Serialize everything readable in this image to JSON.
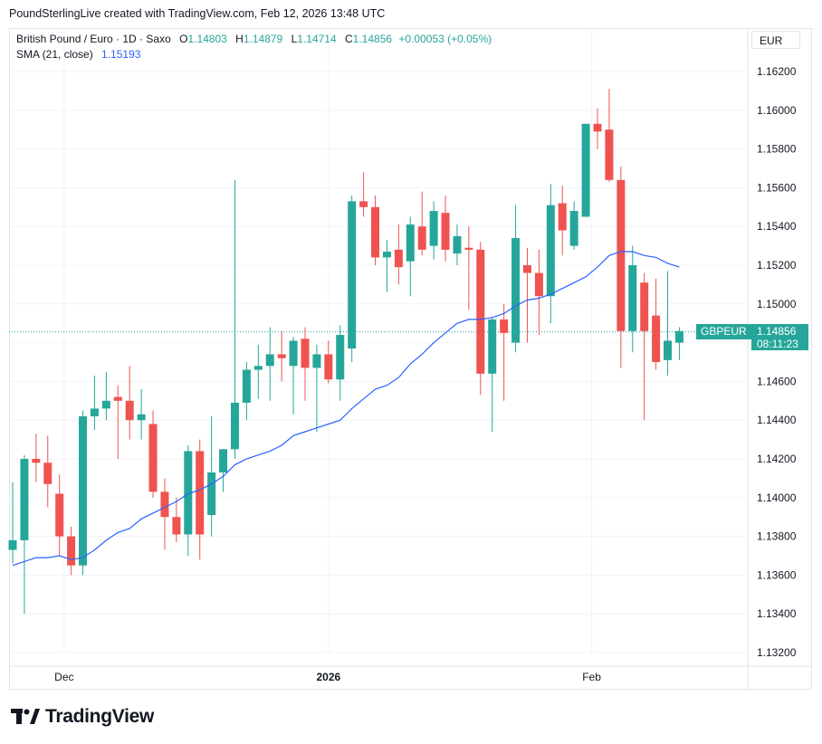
{
  "header": {
    "caption": "PoundSterlingLive created with TradingView.com, Feb 12, 2026 13:48 UTC"
  },
  "legend": {
    "symbol": "British Pound / Euro · 1D · Saxo",
    "open_label": "O",
    "open_value": "1.14803",
    "high_label": "H",
    "high_value": "1.14879",
    "low_label": "L",
    "low_value": "1.14714",
    "close_label": "C",
    "close_value": "1.14856",
    "change": "+0.00053 (+0.05%)",
    "sma_label": "SMA (21, close)",
    "sma_value": "1.15193"
  },
  "currency_button": "EUR",
  "price_tag": {
    "symbol": "GBPEUR",
    "price": "1.14856",
    "countdown": "08:11:23"
  },
  "footer": {
    "brand": "TradingView"
  },
  "colors": {
    "up": "#26a69a",
    "down": "#ef5350",
    "sma": "#2962ff",
    "grid": "#f0f3fa"
  },
  "chart_data": {
    "type": "candlestick",
    "y_axis": {
      "ticks": [
        "1.16200",
        "1.16000",
        "1.15800",
        "1.15600",
        "1.15400",
        "1.15200",
        "1.15000",
        "1.14800",
        "1.14600",
        "1.14400",
        "1.14200",
        "1.14000",
        "1.13800",
        "1.13600",
        "1.13400",
        "1.13200"
      ],
      "range": [
        1.1314,
        1.1633
      ],
      "position": "right"
    },
    "x_axis": {
      "labels": [
        {
          "text": "Dec",
          "index": 4.4
        },
        {
          "text": "2026",
          "index": 27
        },
        {
          "text": "Feb",
          "index": 49.5
        }
      ]
    },
    "series": [
      {
        "name": "British Pound / Euro",
        "candles": [
          {
            "o": 1.1373,
            "h": 1.1408,
            "l": 1.1366,
            "c": 1.1378
          },
          {
            "o": 1.1378,
            "h": 1.1422,
            "l": 1.134,
            "c": 1.142
          },
          {
            "o": 1.142,
            "h": 1.1433,
            "l": 1.1408,
            "c": 1.1418
          },
          {
            "o": 1.1418,
            "h": 1.1432,
            "l": 1.1395,
            "c": 1.1407
          },
          {
            "o": 1.1402,
            "h": 1.1412,
            "l": 1.137,
            "c": 1.138
          },
          {
            "o": 1.138,
            "h": 1.1385,
            "l": 1.136,
            "c": 1.1365
          },
          {
            "o": 1.1365,
            "h": 1.1445,
            "l": 1.136,
            "c": 1.1442
          },
          {
            "o": 1.1442,
            "h": 1.1463,
            "l": 1.1435,
            "c": 1.1446
          },
          {
            "o": 1.1446,
            "h": 1.1465,
            "l": 1.144,
            "c": 1.145
          },
          {
            "o": 1.1452,
            "h": 1.1458,
            "l": 1.142,
            "c": 1.145
          },
          {
            "o": 1.145,
            "h": 1.1468,
            "l": 1.143,
            "c": 1.144
          },
          {
            "o": 1.144,
            "h": 1.1456,
            "l": 1.143,
            "c": 1.1443
          },
          {
            "o": 1.1438,
            "h": 1.1445,
            "l": 1.14,
            "c": 1.1403
          },
          {
            "o": 1.1403,
            "h": 1.141,
            "l": 1.1373,
            "c": 1.139
          },
          {
            "o": 1.139,
            "h": 1.14,
            "l": 1.1377,
            "c": 1.1381
          },
          {
            "o": 1.1381,
            "h": 1.1427,
            "l": 1.137,
            "c": 1.1424
          },
          {
            "o": 1.1424,
            "h": 1.143,
            "l": 1.1368,
            "c": 1.1381
          },
          {
            "o": 1.1391,
            "h": 1.1442,
            "l": 1.138,
            "c": 1.1413
          },
          {
            "o": 1.1413,
            "h": 1.1425,
            "l": 1.1403,
            "c": 1.1425
          },
          {
            "o": 1.1425,
            "h": 1.1564,
            "l": 1.142,
            "c": 1.1449
          },
          {
            "o": 1.1449,
            "h": 1.147,
            "l": 1.144,
            "c": 1.1466
          },
          {
            "o": 1.1466,
            "h": 1.1479,
            "l": 1.1451,
            "c": 1.1468
          },
          {
            "o": 1.1468,
            "h": 1.1488,
            "l": 1.145,
            "c": 1.1474
          },
          {
            "o": 1.1474,
            "h": 1.1486,
            "l": 1.146,
            "c": 1.1472
          },
          {
            "o": 1.1468,
            "h": 1.1483,
            "l": 1.1443,
            "c": 1.1481
          },
          {
            "o": 1.1482,
            "h": 1.1488,
            "l": 1.145,
            "c": 1.1467
          },
          {
            "o": 1.1467,
            "h": 1.1479,
            "l": 1.1434,
            "c": 1.1474
          },
          {
            "o": 1.1474,
            "h": 1.1481,
            "l": 1.1459,
            "c": 1.1461
          },
          {
            "o": 1.1461,
            "h": 1.1489,
            "l": 1.145,
            "c": 1.1484
          },
          {
            "o": 1.1477,
            "h": 1.1556,
            "l": 1.147,
            "c": 1.1553
          },
          {
            "o": 1.1553,
            "h": 1.1568,
            "l": 1.1545,
            "c": 1.155
          },
          {
            "o": 1.155,
            "h": 1.1556,
            "l": 1.152,
            "c": 1.1524
          },
          {
            "o": 1.1524,
            "h": 1.1533,
            "l": 1.1506,
            "c": 1.1527
          },
          {
            "o": 1.1528,
            "h": 1.1541,
            "l": 1.151,
            "c": 1.1519
          },
          {
            "o": 1.1522,
            "h": 1.1545,
            "l": 1.1504,
            "c": 1.1541
          },
          {
            "o": 1.154,
            "h": 1.1558,
            "l": 1.1525,
            "c": 1.1528
          },
          {
            "o": 1.153,
            "h": 1.1553,
            "l": 1.1523,
            "c": 1.1548
          },
          {
            "o": 1.1547,
            "h": 1.1556,
            "l": 1.1522,
            "c": 1.1528
          },
          {
            "o": 1.1526,
            "h": 1.1541,
            "l": 1.152,
            "c": 1.1535
          },
          {
            "o": 1.1529,
            "h": 1.154,
            "l": 1.1497,
            "c": 1.1528
          },
          {
            "o": 1.1528,
            "h": 1.1532,
            "l": 1.1453,
            "c": 1.1464
          },
          {
            "o": 1.1464,
            "h": 1.1493,
            "l": 1.1434,
            "c": 1.1492
          },
          {
            "o": 1.1492,
            "h": 1.15,
            "l": 1.145,
            "c": 1.1485
          },
          {
            "o": 1.148,
            "h": 1.1551,
            "l": 1.1475,
            "c": 1.1534
          },
          {
            "o": 1.152,
            "h": 1.1529,
            "l": 1.148,
            "c": 1.1516
          },
          {
            "o": 1.1516,
            "h": 1.1528,
            "l": 1.1484,
            "c": 1.1504
          },
          {
            "o": 1.1504,
            "h": 1.1562,
            "l": 1.149,
            "c": 1.1551
          },
          {
            "o": 1.1552,
            "h": 1.1561,
            "l": 1.1525,
            "c": 1.1538
          },
          {
            "o": 1.153,
            "h": 1.1553,
            "l": 1.1528,
            "c": 1.1548
          },
          {
            "o": 1.1545,
            "h": 1.1593,
            "l": 1.1545,
            "c": 1.1593
          },
          {
            "o": 1.1593,
            "h": 1.1601,
            "l": 1.158,
            "c": 1.1589
          },
          {
            "o": 1.159,
            "h": 1.1611,
            "l": 1.1563,
            "c": 1.1564
          },
          {
            "o": 1.1564,
            "h": 1.1571,
            "l": 1.1467,
            "c": 1.1486
          },
          {
            "o": 1.1486,
            "h": 1.153,
            "l": 1.1475,
            "c": 1.152
          },
          {
            "o": 1.1511,
            "h": 1.1516,
            "l": 1.144,
            "c": 1.1486
          },
          {
            "o": 1.1494,
            "h": 1.1513,
            "l": 1.1466,
            "c": 1.147
          },
          {
            "o": 1.1471,
            "h": 1.1517,
            "l": 1.1463,
            "c": 1.1481
          },
          {
            "o": 1.148,
            "h": 1.1488,
            "l": 1.1471,
            "c": 1.1486
          }
        ]
      },
      {
        "name": "SMA (21, close)",
        "values": [
          1.1365,
          1.1367,
          1.1369,
          1.1369,
          1.137,
          1.1368,
          1.1369,
          1.1373,
          1.1378,
          1.1382,
          1.1384,
          1.1389,
          1.1392,
          1.1395,
          1.1398,
          1.1402,
          1.1404,
          1.1407,
          1.1411,
          1.1417,
          1.142,
          1.1422,
          1.1424,
          1.1427,
          1.1432,
          1.1434,
          1.1436,
          1.1438,
          1.144,
          1.1446,
          1.1451,
          1.1456,
          1.1458,
          1.1462,
          1.1469,
          1.1474,
          1.148,
          1.1485,
          1.149,
          1.1492,
          1.1492,
          1.1493,
          1.1495,
          1.1499,
          1.1502,
          1.1503,
          1.1505,
          1.1508,
          1.1511,
          1.1514,
          1.1519,
          1.1525,
          1.1527,
          1.1527,
          1.1525,
          1.1524,
          1.1521,
          1.1519
        ]
      }
    ],
    "last_price_line": 1.14856,
    "grid": true
  }
}
